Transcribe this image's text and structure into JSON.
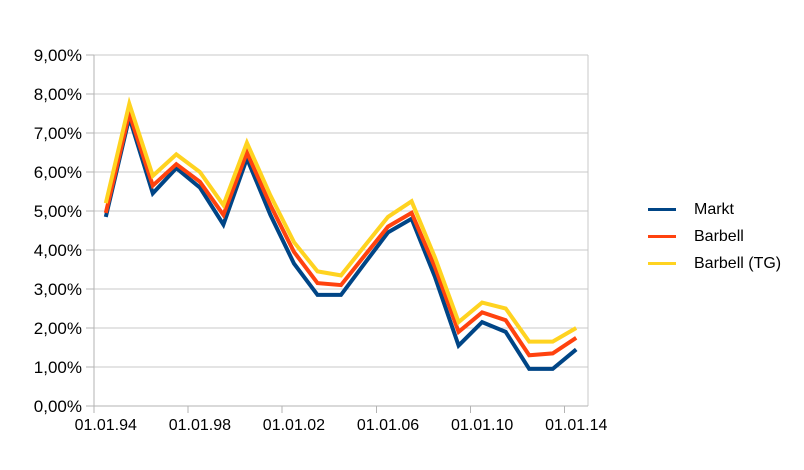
{
  "chart_data": {
    "type": "line",
    "title": "",
    "xlabel": "",
    "ylabel": "",
    "ylim": [
      0,
      9
    ],
    "grid": true,
    "legend_position": "right",
    "y_tick_labels": [
      "0,00%",
      "1,00%",
      "2,00%",
      "3,00%",
      "4,00%",
      "5,00%",
      "6,00%",
      "7,00%",
      "8,00%",
      "9,00%"
    ],
    "x_tick_labels": [
      "01.01.94",
      "01.01.98",
      "01.01.02",
      "01.01.06",
      "01.01.10",
      "01.01.14"
    ],
    "x_tick_label_interval": 4,
    "categories": [
      1994,
      1995,
      1996,
      1997,
      1998,
      1999,
      2000,
      2001,
      2002,
      2003,
      2004,
      2005,
      2006,
      2007,
      2008,
      2009,
      2010,
      2011,
      2012,
      2013,
      2014
    ],
    "series": [
      {
        "name": "Markt",
        "color": "#004586",
        "values": [
          4.85,
          7.4,
          5.45,
          6.1,
          5.6,
          4.65,
          6.35,
          4.9,
          3.65,
          2.85,
          2.85,
          3.65,
          4.45,
          4.8,
          3.3,
          1.55,
          2.15,
          1.9,
          0.95,
          0.95,
          1.45
        ]
      },
      {
        "name": "Barbell",
        "color": "#ff420e",
        "values": [
          4.95,
          7.5,
          5.65,
          6.2,
          5.75,
          4.9,
          6.5,
          5.15,
          3.95,
          3.15,
          3.1,
          3.85,
          4.6,
          4.95,
          3.55,
          1.9,
          2.4,
          2.2,
          1.3,
          1.35,
          1.75
        ]
      },
      {
        "name": "Barbell (TG)",
        "color": "#ffd320",
        "values": [
          5.2,
          7.75,
          5.9,
          6.45,
          6.0,
          5.15,
          6.75,
          5.4,
          4.2,
          3.45,
          3.35,
          4.1,
          4.85,
          5.25,
          3.8,
          2.15,
          2.65,
          2.5,
          1.65,
          1.65,
          2.0
        ]
      }
    ]
  },
  "colors": {
    "background": "#ffffff",
    "gridline": "#c9c9c9",
    "axis": "#b3b3b3",
    "text": "#000000"
  }
}
